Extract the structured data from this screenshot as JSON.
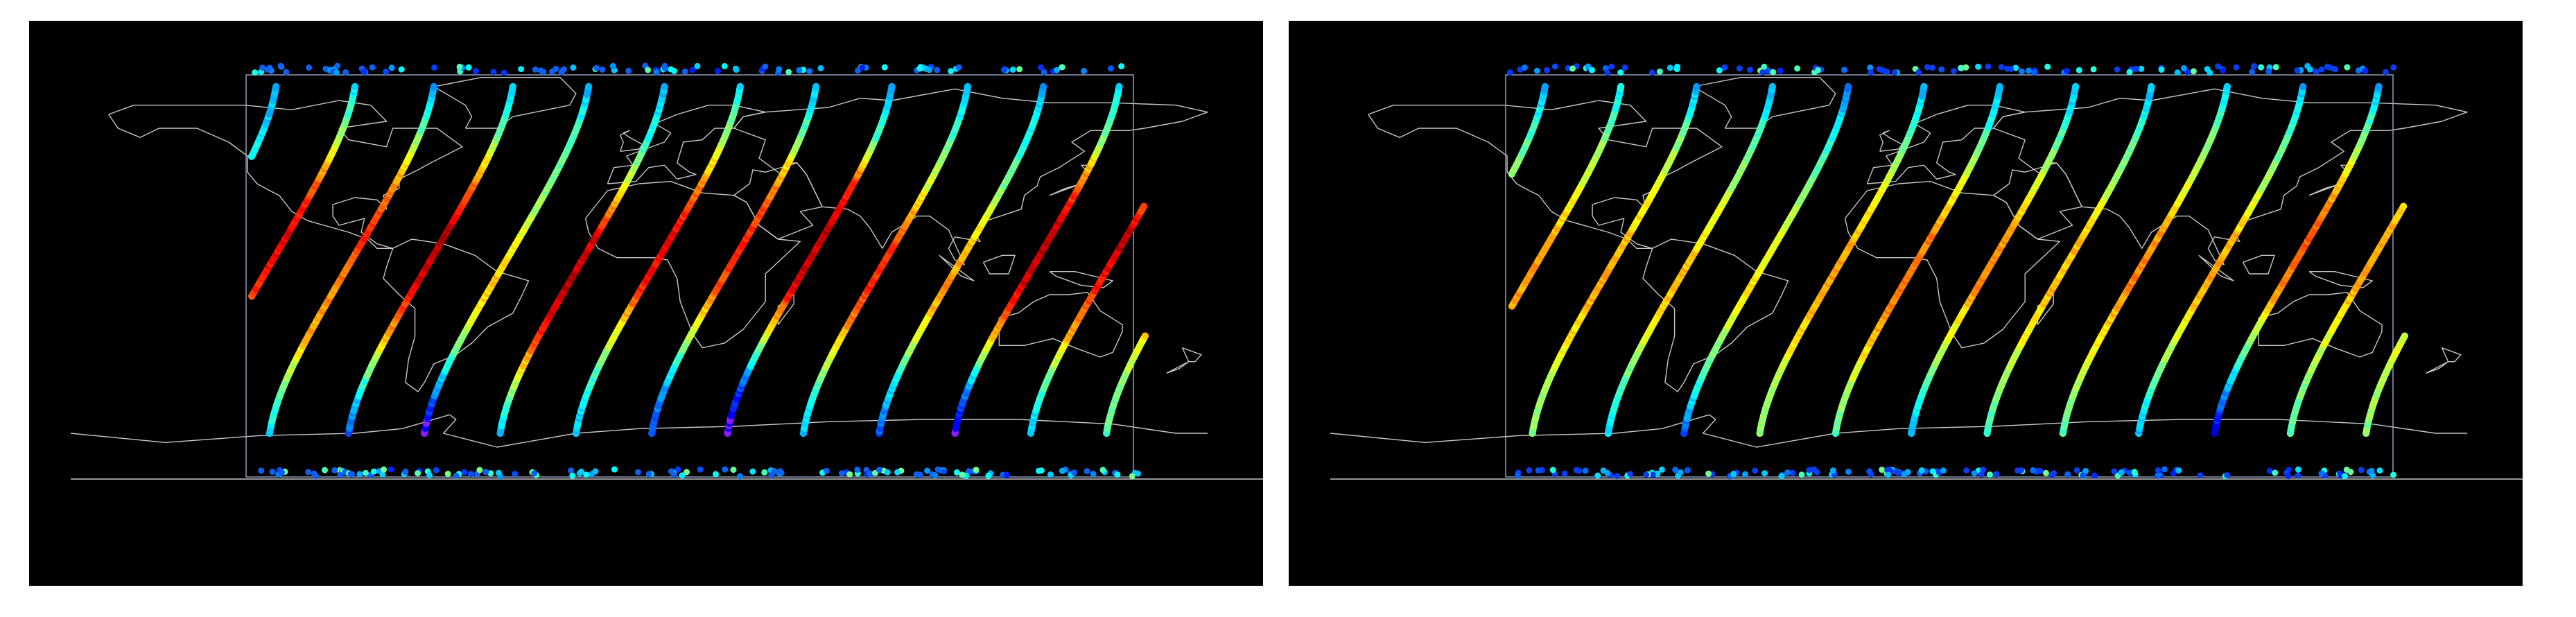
{
  "panels": [
    {
      "id": "left",
      "palette": "jet",
      "polar_dot_color": "#1060f0",
      "tracks": [
        {
          "lon_start": -175,
          "profile": [
            0.85,
            0.9,
            0.95,
            0.9,
            0.75,
            0.5,
            0.35,
            0.3
          ]
        },
        {
          "lon_start": -150,
          "profile": [
            0.45,
            0.55,
            0.7,
            0.85,
            0.9,
            0.8,
            0.55,
            0.35
          ]
        },
        {
          "lon_start": -125,
          "profile": [
            0.35,
            0.5,
            0.7,
            0.75,
            0.85,
            0.75,
            0.5,
            0.3
          ]
        },
        {
          "lon_start": -100,
          "profile": [
            0.2,
            0.4,
            0.7,
            0.9,
            0.95,
            0.8,
            0.5,
            0.3
          ]
        },
        {
          "lon_start": -76,
          "profile": [
            0.05,
            0.3,
            0.55,
            0.7,
            0.6,
            0.5,
            0.45,
            0.3
          ]
        },
        {
          "lon_start": -52,
          "profile": [
            0.3,
            0.55,
            0.85,
            0.95,
            0.9,
            0.6,
            0.4,
            0.3
          ]
        },
        {
          "lon_start": -28,
          "profile": [
            0.3,
            0.4,
            0.6,
            0.85,
            0.9,
            0.75,
            0.55,
            0.35
          ]
        },
        {
          "lon_start": -4,
          "profile": [
            0.2,
            0.3,
            0.55,
            0.8,
            0.85,
            0.75,
            0.5,
            0.3
          ]
        },
        {
          "lon_start": 20,
          "profile": [
            0.05,
            0.2,
            0.6,
            0.9,
            0.95,
            0.85,
            0.45,
            0.3
          ]
        },
        {
          "lon_start": 44,
          "profile": [
            0.3,
            0.45,
            0.7,
            0.85,
            0.8,
            0.6,
            0.45,
            0.3
          ]
        },
        {
          "lon_start": 68,
          "profile": [
            0.2,
            0.35,
            0.6,
            0.75,
            0.65,
            0.5,
            0.4,
            0.3
          ]
        },
        {
          "lon_start": 92,
          "profile": [
            0.05,
            0.3,
            0.7,
            0.9,
            0.95,
            0.8,
            0.5,
            0.35
          ]
        },
        {
          "lon_start": 116,
          "profile": [
            0.3,
            0.45,
            0.7,
            0.85,
            0.95,
            0.7,
            0.45,
            0.3
          ]
        },
        {
          "lon_start": 140,
          "profile": [
            0.45,
            0.5,
            0.65,
            0.8,
            0.85,
            0.6,
            0.45,
            0.35
          ]
        }
      ]
    },
    {
      "id": "right",
      "palette": "jet",
      "polar_dot_color": "#0a3cf0",
      "tracks": [
        {
          "lon_start": -172,
          "profile": [
            0.7,
            0.75,
            0.8,
            0.8,
            0.7,
            0.55,
            0.45,
            0.3
          ]
        },
        {
          "lon_start": -148,
          "profile": [
            0.55,
            0.6,
            0.7,
            0.72,
            0.7,
            0.6,
            0.5,
            0.35
          ]
        },
        {
          "lon_start": -124,
          "profile": [
            0.5,
            0.55,
            0.65,
            0.72,
            0.68,
            0.6,
            0.5,
            0.3
          ]
        },
        {
          "lon_start": -100,
          "profile": [
            0.35,
            0.45,
            0.6,
            0.7,
            0.65,
            0.55,
            0.45,
            0.3
          ]
        },
        {
          "lon_start": -76,
          "profile": [
            0.2,
            0.4,
            0.55,
            0.65,
            0.6,
            0.5,
            0.4,
            0.25
          ]
        },
        {
          "lon_start": -52,
          "profile": [
            0.5,
            0.55,
            0.65,
            0.72,
            0.7,
            0.6,
            0.45,
            0.3
          ]
        },
        {
          "lon_start": -28,
          "profile": [
            0.45,
            0.55,
            0.7,
            0.78,
            0.75,
            0.62,
            0.45,
            0.3
          ]
        },
        {
          "lon_start": -4,
          "profile": [
            0.3,
            0.45,
            0.6,
            0.75,
            0.72,
            0.6,
            0.45,
            0.3
          ]
        },
        {
          "lon_start": 20,
          "profile": [
            0.4,
            0.5,
            0.62,
            0.7,
            0.68,
            0.55,
            0.45,
            0.3
          ]
        },
        {
          "lon_start": 44,
          "profile": [
            0.45,
            0.55,
            0.65,
            0.75,
            0.72,
            0.6,
            0.5,
            0.35
          ]
        },
        {
          "lon_start": 68,
          "profile": [
            0.3,
            0.45,
            0.6,
            0.72,
            0.7,
            0.55,
            0.45,
            0.3
          ]
        },
        {
          "lon_start": 92,
          "profile": [
            0.1,
            0.3,
            0.55,
            0.75,
            0.8,
            0.7,
            0.5,
            0.3
          ]
        },
        {
          "lon_start": 116,
          "profile": [
            0.45,
            0.5,
            0.6,
            0.7,
            0.72,
            0.6,
            0.5,
            0.35
          ]
        },
        {
          "lon_start": 140,
          "profile": [
            0.5,
            0.55,
            0.6,
            0.7,
            0.75,
            0.65,
            0.5,
            0.4
          ]
        }
      ]
    }
  ]
}
